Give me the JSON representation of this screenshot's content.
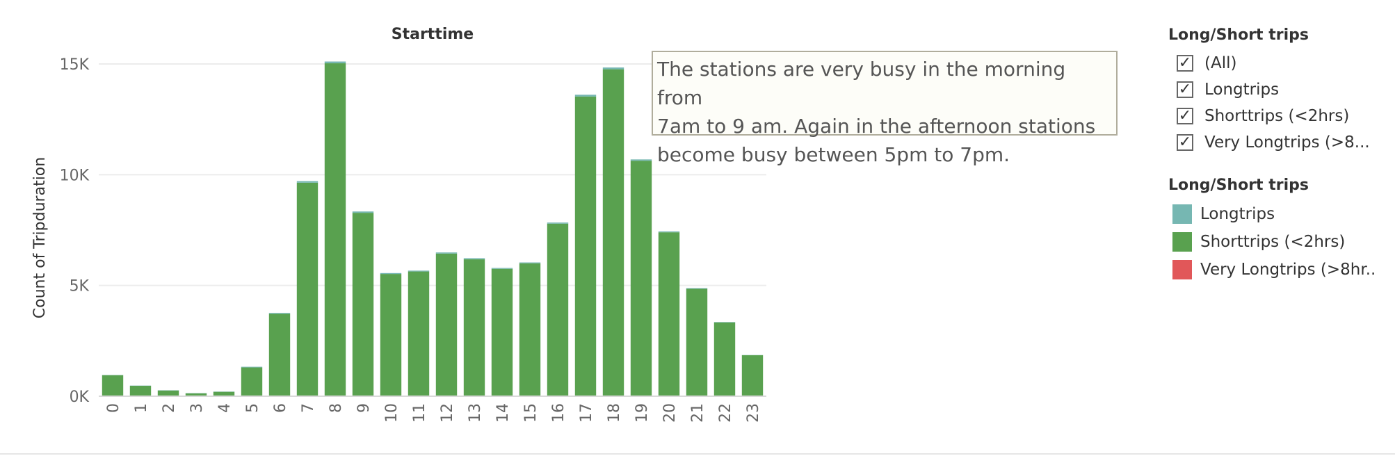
{
  "chart_data": {
    "type": "bar",
    "title": "Starttime",
    "xlabel": "",
    "ylabel": "Count of Tripduration",
    "ylim": [
      0,
      15000
    ],
    "y_ticks": [
      0,
      5000,
      10000,
      15000
    ],
    "y_tick_labels": [
      "0K",
      "5K",
      "10K",
      "15K"
    ],
    "grid": true,
    "stacked": true,
    "categories": [
      "0",
      "1",
      "2",
      "3",
      "4",
      "5",
      "6",
      "7",
      "8",
      "9",
      "10",
      "11",
      "12",
      "13",
      "14",
      "15",
      "16",
      "17",
      "18",
      "19",
      "20",
      "21",
      "22",
      "23"
    ],
    "series": [
      {
        "name": "Shorttrips (<2hrs)",
        "color": "#59a14f",
        "values": [
          950,
          470,
          260,
          130,
          200,
          1300,
          3720,
          9640,
          15030,
          8280,
          5520,
          5630,
          6440,
          6180,
          5750,
          6000,
          7790,
          13530,
          14760,
          10630,
          7400,
          4850,
          3330,
          1850
        ]
      },
      {
        "name": "Longtrips",
        "color": "#76b7b2",
        "values": [
          10,
          10,
          10,
          10,
          10,
          30,
          40,
          70,
          80,
          60,
          40,
          40,
          50,
          50,
          40,
          40,
          50,
          80,
          80,
          60,
          40,
          30,
          20,
          10
        ]
      },
      {
        "name": "Very Longtrips (>8hr..",
        "color": "#e15759",
        "values": [
          0,
          0,
          0,
          0,
          0,
          0,
          0,
          0,
          0,
          0,
          0,
          0,
          0,
          0,
          0,
          0,
          0,
          0,
          0,
          0,
          0,
          0,
          0,
          0
        ]
      }
    ]
  },
  "annotation": {
    "line1": "The stations are very busy in the morning from",
    "line2": "7am to 9 am. Again in the afternoon stations",
    "line3": "become busy between 5pm to 7pm."
  },
  "filter": {
    "title": "Long/Short trips",
    "check_glyph": "✓",
    "items": [
      {
        "label": "(All)"
      },
      {
        "label": "Longtrips"
      },
      {
        "label": "Shorttrips (<2hrs)"
      },
      {
        "label": "Very Longtrips (>8..."
      }
    ]
  },
  "legend": {
    "title": "Long/Short trips",
    "items": [
      {
        "label": "Longtrips",
        "color": "#76b7b2"
      },
      {
        "label": "Shorttrips (<2hrs)",
        "color": "#59a14f"
      },
      {
        "label": "Very Longtrips (>8hr..",
        "color": "#e15759"
      }
    ]
  }
}
